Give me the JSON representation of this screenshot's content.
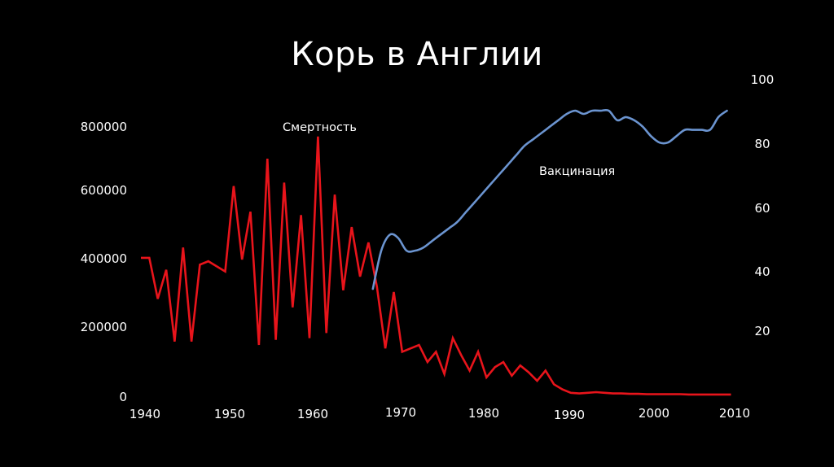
{
  "title": "Корь в Англии",
  "chart_data": {
    "type": "line",
    "title": "Корь в Англии",
    "xlabel": "",
    "ylabel_left": "",
    "ylabel_right": "",
    "grid": false,
    "legend": "none (inline annotations)",
    "x_ticks": [
      "1940",
      "1950",
      "1960",
      "1970",
      "1980",
      "1990",
      "2000",
      "2010"
    ],
    "y_left_ticks": [
      "0",
      "200000",
      "400000",
      "600000",
      "800000"
    ],
    "y_right_ticks": [
      "20",
      "40",
      "60",
      "80",
      "100"
    ],
    "ylim_left": [
      0,
      800000
    ],
    "ylim_right": [
      0,
      100
    ],
    "xlim": [
      1940,
      2010
    ],
    "annotations": [
      {
        "text": "Смертность",
        "series": "Смертность"
      },
      {
        "text": "Вакцинация",
        "series": "Вакцинация"
      }
    ],
    "series": [
      {
        "name": "Смертность",
        "axis": "left",
        "color": "#e8141b",
        "x": [
          1940,
          1941,
          1942,
          1943,
          1944,
          1945,
          1946,
          1947,
          1948,
          1949,
          1950,
          1951,
          1952,
          1953,
          1954,
          1955,
          1956,
          1957,
          1958,
          1959,
          1960,
          1961,
          1962,
          1963,
          1964,
          1965,
          1966,
          1967,
          1968,
          1969,
          1970,
          1971,
          1972,
          1973,
          1974,
          1975,
          1976,
          1977,
          1978,
          1979,
          1980,
          1981,
          1982,
          1983,
          1984,
          1985,
          1986,
          1987,
          1988,
          1989,
          1990,
          1991,
          1992,
          1993,
          1994,
          1995,
          1996,
          1997,
          1998,
          1999,
          2000,
          2001,
          2002,
          2003,
          2004,
          2005,
          2006,
          2007,
          2008,
          2009,
          2010
        ],
        "values": [
          405000,
          405000,
          285000,
          370000,
          160000,
          435000,
          160000,
          385000,
          395000,
          380000,
          365000,
          615000,
          400000,
          540000,
          150000,
          695000,
          165000,
          625000,
          260000,
          530000,
          170000,
          760000,
          185000,
          590000,
          310000,
          495000,
          350000,
          450000,
          320000,
          140000,
          305000,
          130000,
          140000,
          150000,
          100000,
          130000,
          65000,
          170000,
          120000,
          75000,
          130000,
          55000,
          85000,
          100000,
          60000,
          90000,
          70000,
          45000,
          75000,
          35000,
          20000,
          10000,
          8000,
          10000,
          12000,
          10000,
          8000,
          8000,
          7000,
          7000,
          6000,
          6000,
          6000,
          6000,
          6000,
          5000,
          5000,
          5000,
          5000,
          5000,
          5000
        ]
      },
      {
        "name": "Вакцинация",
        "axis": "right",
        "color": "#6b94d0",
        "x": [
          1968,
          1969,
          1970,
          1971,
          1972,
          1973,
          1974,
          1975,
          1976,
          1977,
          1978,
          1979,
          1980,
          1981,
          1982,
          1983,
          1984,
          1985,
          1986,
          1987,
          1988,
          1989,
          1990,
          1991,
          1992,
          1993,
          1994,
          1995,
          1996,
          1997,
          1998,
          1999,
          2000,
          2001,
          2002,
          2003,
          2004,
          2005,
          2006,
          2007,
          2008,
          2009,
          2010
        ],
        "values": [
          34,
          46,
          51,
          50,
          46,
          46,
          47,
          49,
          51,
          53,
          55,
          58,
          61,
          64,
          67,
          70,
          73,
          76,
          79,
          81,
          83,
          85,
          87,
          89,
          90,
          89,
          90,
          90,
          90,
          87,
          88,
          87,
          85,
          82,
          80,
          80,
          82,
          84,
          84,
          84,
          84,
          88,
          90
        ]
      }
    ]
  }
}
